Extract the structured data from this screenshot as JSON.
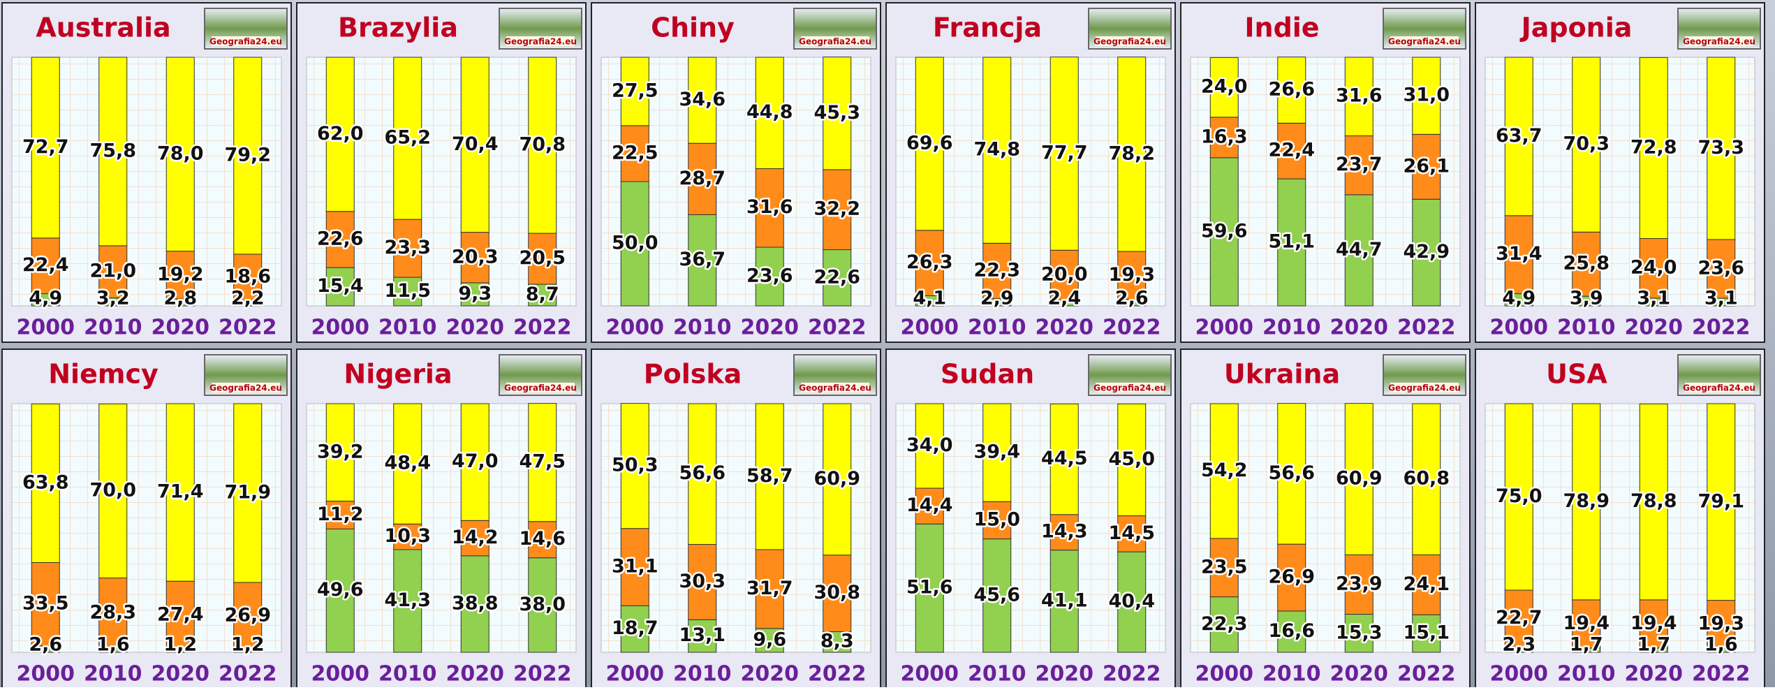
{
  "logo": "Geografia24.eu",
  "chart_data": [
    {
      "type": "stacked-bar",
      "title": "Australia",
      "categories": [
        "2000",
        "2010",
        "2020",
        "2022"
      ],
      "ylim": [
        0,
        100
      ],
      "series": [
        {
          "color": "#92d050",
          "values": [
            4.9,
            3.2,
            2.8,
            2.2
          ],
          "value_labels": [
            "4,9",
            "3,2",
            "2,8",
            "2,2"
          ]
        },
        {
          "color": "#ff8c1a",
          "values": [
            22.4,
            21.0,
            19.2,
            18.6
          ],
          "value_labels": [
            "22,4",
            "21,0",
            "19,2",
            "18,6"
          ]
        },
        {
          "color": "#ffff00",
          "values": [
            72.7,
            75.8,
            78.0,
            79.2
          ],
          "value_labels": [
            "72,7",
            "75,8",
            "78,0",
            "79,2"
          ]
        }
      ]
    },
    {
      "type": "stacked-bar",
      "title": "Brazylia",
      "categories": [
        "2000",
        "2010",
        "2020",
        "2022"
      ],
      "ylim": [
        0,
        100
      ],
      "series": [
        {
          "color": "#92d050",
          "values": [
            15.4,
            11.5,
            9.3,
            8.7
          ],
          "value_labels": [
            "15,4",
            "11,5",
            "9,3",
            "8,7"
          ]
        },
        {
          "color": "#ff8c1a",
          "values": [
            22.6,
            23.3,
            20.3,
            20.5
          ],
          "value_labels": [
            "22,6",
            "23,3",
            "20,3",
            "20,5"
          ]
        },
        {
          "color": "#ffff00",
          "values": [
            62.0,
            65.2,
            70.4,
            70.8
          ],
          "value_labels": [
            "62,0",
            "65,2",
            "70,4",
            "70,8"
          ]
        }
      ]
    },
    {
      "type": "stacked-bar",
      "title": "Chiny",
      "categories": [
        "2000",
        "2010",
        "2020",
        "2022"
      ],
      "ylim": [
        0,
        100
      ],
      "series": [
        {
          "color": "#92d050",
          "values": [
            50.0,
            36.7,
            23.6,
            22.6
          ],
          "value_labels": [
            "50,0",
            "36,7",
            "23,6",
            "22,6"
          ]
        },
        {
          "color": "#ff8c1a",
          "values": [
            22.5,
            28.7,
            31.6,
            32.2
          ],
          "value_labels": [
            "22,5",
            "28,7",
            "31,6",
            "32,2"
          ]
        },
        {
          "color": "#ffff00",
          "values": [
            27.5,
            34.6,
            44.8,
            45.3
          ],
          "value_labels": [
            "27,5",
            "34,6",
            "44,8",
            "45,3"
          ]
        }
      ]
    },
    {
      "type": "stacked-bar",
      "title": "Francja",
      "categories": [
        "2000",
        "2010",
        "2020",
        "2022"
      ],
      "ylim": [
        0,
        100
      ],
      "series": [
        {
          "color": "#92d050",
          "values": [
            4.1,
            2.9,
            2.4,
            2.6
          ],
          "value_labels": [
            "4,1",
            "2,9",
            "2,4",
            "2,6"
          ]
        },
        {
          "color": "#ff8c1a",
          "values": [
            26.3,
            22.3,
            20.0,
            19.3
          ],
          "value_labels": [
            "26,3",
            "22,3",
            "20,0",
            "19,3"
          ]
        },
        {
          "color": "#ffff00",
          "values": [
            69.6,
            74.8,
            77.7,
            78.2
          ],
          "value_labels": [
            "69,6",
            "74,8",
            "77,7",
            "78,2"
          ]
        }
      ]
    },
    {
      "type": "stacked-bar",
      "title": "Indie",
      "categories": [
        "2000",
        "2010",
        "2020",
        "2022"
      ],
      "ylim": [
        0,
        100
      ],
      "series": [
        {
          "color": "#92d050",
          "values": [
            59.6,
            51.1,
            44.7,
            42.9
          ],
          "value_labels": [
            "59,6",
            "51,1",
            "44,7",
            "42,9"
          ]
        },
        {
          "color": "#ff8c1a",
          "values": [
            16.3,
            22.4,
            23.7,
            26.1
          ],
          "value_labels": [
            "16,3",
            "22,4",
            "23,7",
            "26,1"
          ]
        },
        {
          "color": "#ffff00",
          "values": [
            24.0,
            26.6,
            31.6,
            31.0
          ],
          "value_labels": [
            "24,0",
            "26,6",
            "31,6",
            "31,0"
          ]
        }
      ]
    },
    {
      "type": "stacked-bar",
      "title": "Japonia",
      "categories": [
        "2000",
        "2010",
        "2020",
        "2022"
      ],
      "ylim": [
        0,
        100
      ],
      "series": [
        {
          "color": "#92d050",
          "values": [
            4.9,
            3.9,
            3.1,
            3.1
          ],
          "value_labels": [
            "4,9",
            "3,9",
            "3,1",
            "3,1"
          ]
        },
        {
          "color": "#ff8c1a",
          "values": [
            31.4,
            25.8,
            24.0,
            23.6
          ],
          "value_labels": [
            "31,4",
            "25,8",
            "24,0",
            "23,6"
          ]
        },
        {
          "color": "#ffff00",
          "values": [
            63.7,
            70.3,
            72.8,
            73.3
          ],
          "value_labels": [
            "63,7",
            "70,3",
            "72,8",
            "73,3"
          ]
        }
      ]
    },
    {
      "type": "stacked-bar",
      "title": "Niemcy",
      "categories": [
        "2000",
        "2010",
        "2020",
        "2022"
      ],
      "ylim": [
        0,
        100
      ],
      "series": [
        {
          "color": "#92d050",
          "values": [
            2.6,
            1.6,
            1.2,
            1.2
          ],
          "value_labels": [
            "2,6",
            "1,6",
            "1,2",
            "1,2"
          ]
        },
        {
          "color": "#ff8c1a",
          "values": [
            33.5,
            28.3,
            27.4,
            26.9
          ],
          "value_labels": [
            "33,5",
            "28,3",
            "27,4",
            "26,9"
          ]
        },
        {
          "color": "#ffff00",
          "values": [
            63.8,
            70.0,
            71.4,
            71.9
          ],
          "value_labels": [
            "63,8",
            "70,0",
            "71,4",
            "71,9"
          ]
        }
      ]
    },
    {
      "type": "stacked-bar",
      "title": "Nigeria",
      "categories": [
        "2000",
        "2010",
        "2020",
        "2022"
      ],
      "ylim": [
        0,
        100
      ],
      "series": [
        {
          "color": "#92d050",
          "values": [
            49.6,
            41.3,
            38.8,
            38.0
          ],
          "value_labels": [
            "49,6",
            "41,3",
            "38,8",
            "38,0"
          ]
        },
        {
          "color": "#ff8c1a",
          "values": [
            11.2,
            10.3,
            14.2,
            14.6
          ],
          "value_labels": [
            "11,2",
            "10,3",
            "14,2",
            "14,6"
          ]
        },
        {
          "color": "#ffff00",
          "values": [
            39.2,
            48.4,
            47.0,
            47.5
          ],
          "value_labels": [
            "39,2",
            "48,4",
            "47,0",
            "47,5"
          ]
        }
      ]
    },
    {
      "type": "stacked-bar",
      "title": "Polska",
      "categories": [
        "2000",
        "2010",
        "2020",
        "2022"
      ],
      "ylim": [
        0,
        100
      ],
      "series": [
        {
          "color": "#92d050",
          "values": [
            18.7,
            13.1,
            9.6,
            8.3
          ],
          "value_labels": [
            "18,7",
            "13,1",
            "9,6",
            "8,3"
          ]
        },
        {
          "color": "#ff8c1a",
          "values": [
            31.1,
            30.3,
            31.7,
            30.8
          ],
          "value_labels": [
            "31,1",
            "30,3",
            "31,7",
            "30,8"
          ]
        },
        {
          "color": "#ffff00",
          "values": [
            50.3,
            56.6,
            58.7,
            60.9
          ],
          "value_labels": [
            "50,3",
            "56,6",
            "58,7",
            "60,9"
          ]
        }
      ]
    },
    {
      "type": "stacked-bar",
      "title": "Sudan",
      "categories": [
        "2000",
        "2010",
        "2020",
        "2022"
      ],
      "ylim": [
        0,
        100
      ],
      "series": [
        {
          "color": "#92d050",
          "values": [
            51.6,
            45.6,
            41.1,
            40.4
          ],
          "value_labels": [
            "51,6",
            "45,6",
            "41,1",
            "40,4"
          ]
        },
        {
          "color": "#ff8c1a",
          "values": [
            14.4,
            15.0,
            14.3,
            14.5
          ],
          "value_labels": [
            "14,4",
            "15,0",
            "14,3",
            "14,5"
          ]
        },
        {
          "color": "#ffff00",
          "values": [
            34.0,
            39.4,
            44.5,
            45.0
          ],
          "value_labels": [
            "34,0",
            "39,4",
            "44,5",
            "45,0"
          ]
        }
      ]
    },
    {
      "type": "stacked-bar",
      "title": "Ukraina",
      "categories": [
        "2000",
        "2010",
        "2020",
        "2022"
      ],
      "ylim": [
        0,
        100
      ],
      "series": [
        {
          "color": "#92d050",
          "values": [
            22.3,
            16.6,
            15.3,
            15.1
          ],
          "value_labels": [
            "22,3",
            "16,6",
            "15,3",
            "15,1"
          ]
        },
        {
          "color": "#ff8c1a",
          "values": [
            23.5,
            26.9,
            23.9,
            24.1
          ],
          "value_labels": [
            "23,5",
            "26,9",
            "23,9",
            "24,1"
          ]
        },
        {
          "color": "#ffff00",
          "values": [
            54.2,
            56.6,
            60.9,
            60.8
          ],
          "value_labels": [
            "54,2",
            "56,6",
            "60,9",
            "60,8"
          ]
        }
      ]
    },
    {
      "type": "stacked-bar",
      "title": "USA",
      "categories": [
        "2000",
        "2010",
        "2020",
        "2022"
      ],
      "ylim": [
        0,
        100
      ],
      "series": [
        {
          "color": "#92d050",
          "values": [
            2.3,
            1.7,
            1.7,
            1.6
          ],
          "value_labels": [
            "2,3",
            "1,7",
            "1,7",
            "1,6"
          ]
        },
        {
          "color": "#ff8c1a",
          "values": [
            22.7,
            19.4,
            19.4,
            19.3
          ],
          "value_labels": [
            "22,7",
            "19,4",
            "19,4",
            "19,3"
          ]
        },
        {
          "color": "#ffff00",
          "values": [
            75.0,
            78.9,
            78.8,
            79.1
          ],
          "value_labels": [
            "75,0",
            "78,9",
            "78,8",
            "79,1"
          ]
        }
      ]
    }
  ]
}
